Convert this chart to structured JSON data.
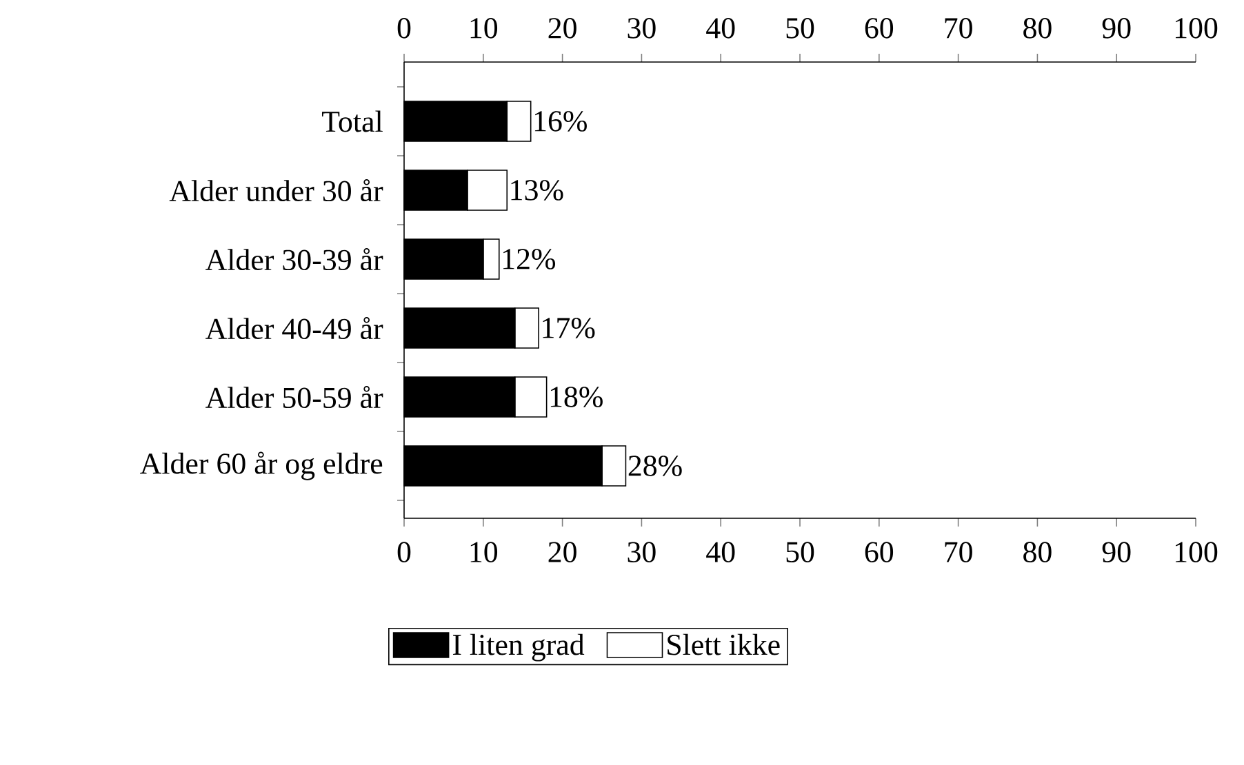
{
  "chart_data": {
    "type": "bar",
    "orientation": "horizontal",
    "stacked": true,
    "categories": [
      "Total",
      "Alder under 30 år",
      "Alder 30-39 år",
      "Alder 40-49 år",
      "Alder 50-59 år",
      "Alder 60 år og eldre"
    ],
    "series": [
      {
        "name": "I liten grad",
        "color": "#000000",
        "values": [
          13,
          8,
          10,
          14,
          14,
          25
        ]
      },
      {
        "name": "Slett ikke",
        "color": "#ffffff",
        "values": [
          3,
          5,
          2,
          3,
          4,
          3
        ]
      }
    ],
    "totals": [
      "16%",
      "13%",
      "12%",
      "17%",
      "18%",
      "28%"
    ],
    "xlim": [
      0,
      100
    ],
    "xticks": [
      0,
      10,
      20,
      30,
      40,
      50,
      60,
      70,
      80,
      90,
      100
    ],
    "x2lim": [
      0,
      100
    ],
    "x2ticks": [
      0,
      10,
      20,
      30,
      40,
      50,
      60,
      70,
      80,
      90,
      100
    ],
    "legend": "bottom"
  }
}
